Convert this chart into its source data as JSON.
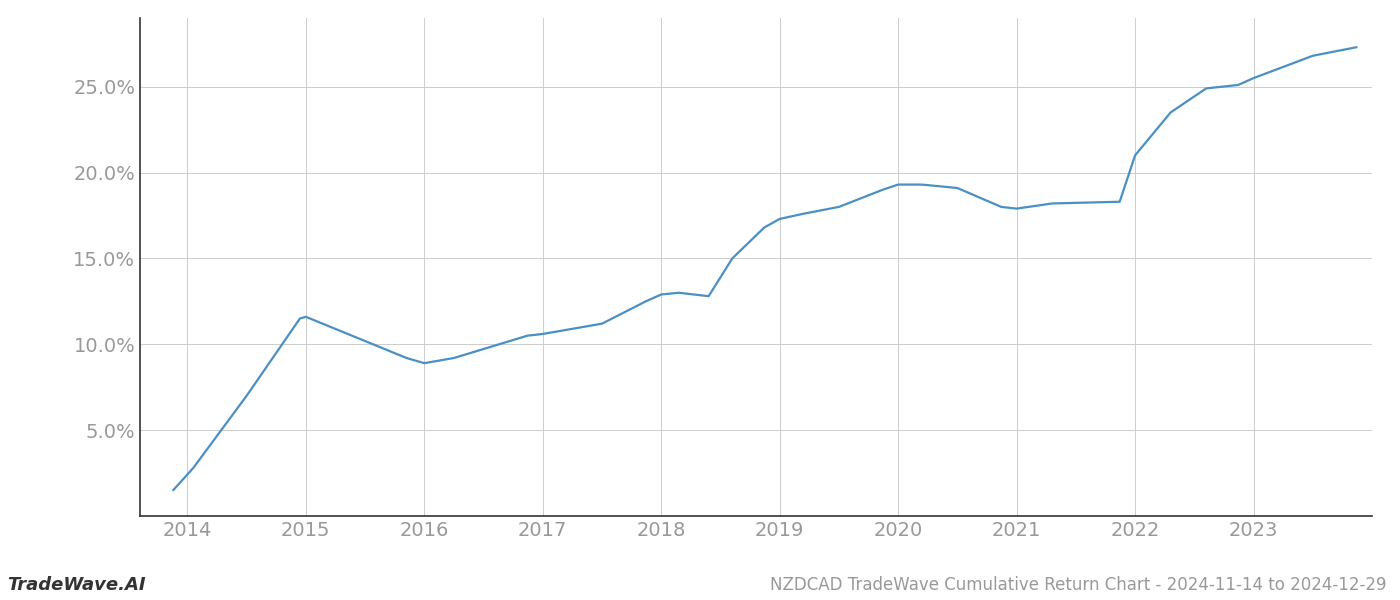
{
  "title": "NZDCAD TradeWave Cumulative Return Chart - 2024-11-14 to 2024-12-29",
  "watermark": "TradeWave.AI",
  "line_color": "#4a90c4",
  "background_color": "#ffffff",
  "grid_color": "#cccccc",
  "x_values": [
    2013.88,
    2014.05,
    2014.5,
    2014.95,
    2015.0,
    2015.85,
    2016.0,
    2016.25,
    2016.87,
    2017.0,
    2017.5,
    2017.87,
    2018.0,
    2018.15,
    2018.4,
    2018.6,
    2018.87,
    2019.0,
    2019.2,
    2019.5,
    2019.87,
    2020.0,
    2020.2,
    2020.5,
    2020.87,
    2021.0,
    2021.3,
    2021.87,
    2022.0,
    2022.3,
    2022.6,
    2022.87,
    2023.0,
    2023.5,
    2023.87
  ],
  "y_values": [
    1.5,
    2.8,
    7.0,
    11.5,
    11.6,
    9.2,
    8.9,
    9.2,
    10.5,
    10.6,
    11.2,
    12.5,
    12.9,
    13.0,
    12.8,
    15.0,
    16.8,
    17.3,
    17.6,
    18.0,
    19.0,
    19.3,
    19.3,
    19.1,
    18.0,
    17.9,
    18.2,
    18.3,
    21.0,
    23.5,
    24.9,
    25.1,
    25.5,
    26.8,
    27.3
  ],
  "xlim": [
    2013.6,
    2024.0
  ],
  "ylim": [
    0,
    29
  ],
  "yticks": [
    5.0,
    10.0,
    15.0,
    20.0,
    25.0
  ],
  "ytick_labels": [
    "5.0%",
    "10.0%",
    "15.0%",
    "20.0%",
    "25.0%"
  ],
  "xticks": [
    2014,
    2015,
    2016,
    2017,
    2018,
    2019,
    2020,
    2021,
    2022,
    2023
  ],
  "xtick_labels": [
    "2014",
    "2015",
    "2016",
    "2017",
    "2018",
    "2019",
    "2020",
    "2021",
    "2022",
    "2023"
  ],
  "tick_color": "#999999",
  "spine_color": "#333333",
  "label_fontsize": 14,
  "title_fontsize": 12,
  "watermark_fontsize": 13,
  "line_width": 1.6
}
